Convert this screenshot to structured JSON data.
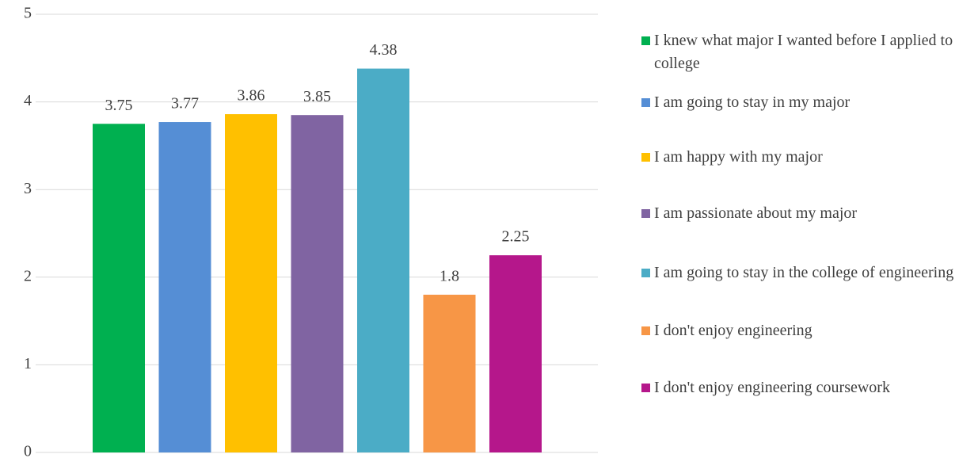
{
  "chart_data": {
    "type": "bar",
    "categories": [
      null
    ],
    "series": [
      {
        "name": "I knew what major I wanted before I applied to college",
        "color": "#00b050",
        "values": [
          3.75
        ]
      },
      {
        "name": "I am going to stay in my major",
        "color": "#558ed5",
        "values": [
          3.77
        ]
      },
      {
        "name": "I am happy with my major",
        "color": "#ffc000",
        "values": [
          3.86
        ]
      },
      {
        "name": "I am passionate about my major",
        "color": "#8064a2",
        "values": [
          3.85
        ]
      },
      {
        "name": "I am going to stay in the college of engineering",
        "color": "#4bacc6",
        "values": [
          4.38
        ]
      },
      {
        "name": "I don't enjoy engineering",
        "color": "#f79646",
        "values": [
          1.8
        ]
      },
      {
        "name": "I don't enjoy engineering coursework",
        "color": "#b5178b",
        "values": [
          2.25
        ]
      }
    ],
    "ylim": [
      0,
      5
    ],
    "yticks": [
      0,
      1,
      2,
      3,
      4,
      5
    ],
    "grid": true,
    "legend": "right"
  }
}
